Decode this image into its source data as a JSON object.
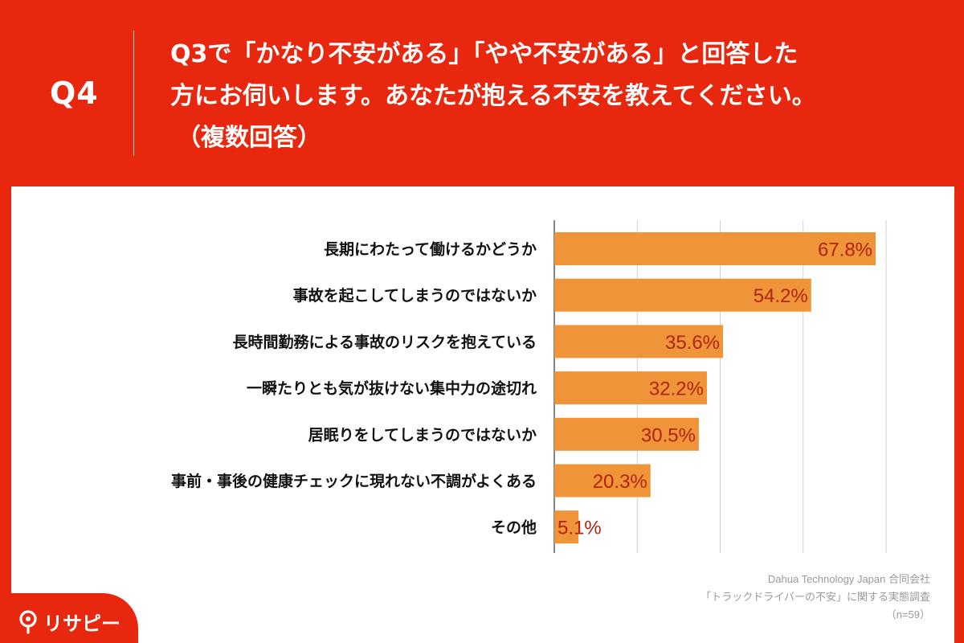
{
  "header": {
    "q_number": "Q4",
    "question_line1": "Q3で「かなり不安がある」「やや不安がある」と回答した",
    "question_line2": "方にお伺いします。あなたが抱える不安を教えてください。",
    "question_line3": "（複数回答）"
  },
  "chart_data": {
    "type": "bar",
    "orientation": "horizontal",
    "categories": [
      "長期にわたって働けるかどうか",
      "事故を起こしてしまうのではないか",
      "長時間勤務による事故のリスクを抱えている",
      "一瞬たりとも気が抜けない集中力の途切れ",
      "居眠りをしてしまうのではないか",
      "事前・事後の健康チェックに現れない不調がよくある",
      "その他"
    ],
    "values": [
      67.8,
      54.2,
      35.6,
      32.2,
      30.5,
      20.3,
      5.1
    ],
    "value_labels": [
      "67.8%",
      "54.2%",
      "35.6%",
      "32.2%",
      "30.5%",
      "20.3%",
      "5.1%"
    ],
    "xlim": [
      0,
      70
    ],
    "grid": true,
    "bar_color": "#f0943a",
    "label_color": "#b0240f"
  },
  "source": {
    "line1": "Dahua Technology Japan 合同会社",
    "line2": "「トラックドライバーの不安」に関する実態調査",
    "line3": "（n=59）"
  },
  "logo": {
    "text": "リサピー",
    "icon": "pin-icon",
    "color": "#e8270f"
  }
}
